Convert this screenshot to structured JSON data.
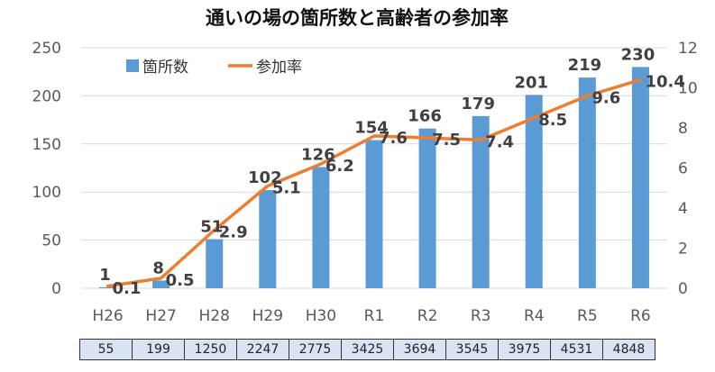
{
  "chart_data": {
    "type": "bar",
    "title": "通いの場の箇所数と高齢者の参加率",
    "categories": [
      "H26",
      "H27",
      "H28",
      "H29",
      "H30",
      "R1",
      "R2",
      "R3",
      "R4",
      "R5",
      "R6"
    ],
    "series": [
      {
        "name": "箇所数",
        "type": "bar",
        "axis": "left",
        "values": [
          1,
          8,
          51,
          102,
          126,
          154,
          166,
          179,
          201,
          219,
          230
        ]
      },
      {
        "name": "参加率",
        "type": "line",
        "axis": "right",
        "values": [
          0.1,
          0.5,
          2.9,
          5.1,
          6.2,
          7.6,
          7.5,
          7.4,
          8.5,
          9.6,
          10.4
        ]
      }
    ],
    "y_left": {
      "min": 0,
      "max": 250,
      "step": 50,
      "ticks": [
        "0",
        "50",
        "100",
        "150",
        "200",
        "250"
      ]
    },
    "y_right": {
      "min": 0,
      "max": 12,
      "step": 2,
      "ticks": [
        "0",
        "2",
        "4",
        "6",
        "8",
        "10",
        "12"
      ]
    },
    "legend": {
      "position": "top-left",
      "entries": [
        "箇所数",
        "参加率"
      ]
    },
    "colors": {
      "bar": "#5b9bd5",
      "line": "#ed7d31",
      "grid": "#d9d9d9",
      "table_bg": "#dae3f3"
    },
    "table_row": [
      "55",
      "199",
      "1250",
      "2247",
      "2775",
      "3425",
      "3694",
      "3545",
      "3975",
      "4531",
      "4848"
    ]
  }
}
